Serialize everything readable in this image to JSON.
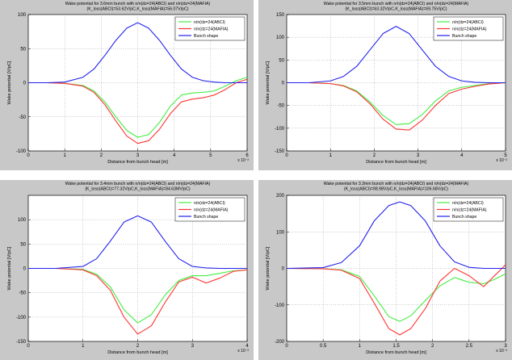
{
  "chart_data": [
    {
      "type": "line",
      "title": "Wake potential for 3.6mm bunch with n/n(dz=24(ABCI) and n/n(dz=24(MAFIA)",
      "subtitle": "(K_loss(ABCI)=53.62V/pC,K_loss(MAFIA)=56.07V/pC)",
      "xlabel": "Distance from bunch head [m]",
      "ylabel": "Wake potential [V/pC]",
      "xlim": [
        0,
        6
      ],
      "ylim": [
        -100,
        100
      ],
      "xtick_labels": [
        "0",
        "1",
        "2",
        "3",
        "4",
        "5",
        "6"
      ],
      "ytick_labels": [
        "100",
        "50",
        "0",
        "-50",
        "-100"
      ],
      "exponent_label": "x 10⁻²",
      "legend_position": "top-right",
      "grid": true,
      "x": [
        0,
        0.5,
        1.0,
        1.5,
        1.8,
        2.1,
        2.4,
        2.7,
        3.0,
        3.3,
        3.6,
        3.9,
        4.2,
        4.5,
        4.8,
        5.1,
        5.4,
        5.7,
        6.0
      ],
      "series": [
        {
          "name": "n/n(dz=24(ABCI)",
          "color": "#44ee44",
          "values": [
            0,
            0,
            -1,
            -4,
            -12,
            -28,
            -50,
            -70,
            -80,
            -76,
            -58,
            -34,
            -18,
            -15,
            -14,
            -12,
            -5,
            3,
            8
          ]
        },
        {
          "name": "n/n(dz=24(MAFIA)",
          "color": "#ff3333",
          "values": [
            0,
            0,
            -1,
            -5,
            -14,
            -32,
            -56,
            -78,
            -89,
            -85,
            -68,
            -45,
            -28,
            -24,
            -22,
            -18,
            -10,
            0,
            5
          ]
        },
        {
          "name": "Bunch shape",
          "color": "#2222ee",
          "values": [
            0,
            0,
            1,
            8,
            20,
            40,
            62,
            80,
            88,
            80,
            62,
            40,
            20,
            8,
            3,
            1,
            0,
            0,
            0
          ]
        }
      ]
    },
    {
      "type": "line",
      "title": "Wake potential for 3.5mm bunch with n/n(dz=24(ABCI) and n/n(dz=24(MAFIA)",
      "subtitle": "(K_loss(ABCI)=63.32V/pC,K_loss(MAFIA)=69.75V/pC)",
      "xlabel": "Distance from bunch head [m]",
      "ylabel": "Wake potential [V/pC]",
      "xlim": [
        0,
        5
      ],
      "ylim": [
        -150,
        150
      ],
      "xtick_labels": [
        "0",
        "1",
        "2",
        "3",
        "4",
        "5"
      ],
      "ytick_labels": [
        "150",
        "100",
        "50",
        "0",
        "-50",
        "-100",
        "-150"
      ],
      "exponent_label": "x 10⁻²",
      "legend_position": "top-right",
      "grid": true,
      "x": [
        0,
        0.5,
        1.0,
        1.3,
        1.6,
        1.9,
        2.2,
        2.5,
        2.8,
        3.1,
        3.4,
        3.7,
        4.0,
        4.3,
        4.6,
        5.0
      ],
      "series": [
        {
          "name": "n/n(dz=24(ABCI)",
          "color": "#44ee44",
          "values": [
            0,
            0,
            -2,
            -6,
            -18,
            -42,
            -72,
            -92,
            -90,
            -70,
            -40,
            -18,
            -10,
            -6,
            -2,
            0
          ]
        },
        {
          "name": "n/n(dz=24(MAFIA)",
          "color": "#ff3333",
          "values": [
            0,
            0,
            -2,
            -7,
            -20,
            -46,
            -80,
            -102,
            -104,
            -82,
            -50,
            -24,
            -14,
            -8,
            -3,
            0
          ]
        },
        {
          "name": "Bunch shape",
          "color": "#2222ee",
          "values": [
            0,
            0,
            4,
            14,
            36,
            72,
            108,
            124,
            108,
            72,
            36,
            14,
            4,
            1,
            0,
            0
          ]
        }
      ]
    },
    {
      "type": "line",
      "title": "Wake potential for 3.4mm bunch with n/n(dz=24(ABCI) and n/n(dz=24(MAFIA)",
      "subtitle": "(K_loss(ABCI)=77.32V/pC,K_loss(MAFIA)=84.63MV/pC)",
      "xlabel": "Distance from bunch head [m]",
      "ylabel": "Wake potential [V/pC]",
      "xlim": [
        0,
        4
      ],
      "ylim": [
        -150,
        150
      ],
      "xtick_labels": [
        "0",
        "1",
        "2",
        "3",
        "4"
      ],
      "ytick_labels": [
        "100",
        "50",
        "0",
        "-50",
        "-100",
        "-150"
      ],
      "exponent_label": "x 10⁻²",
      "legend_position": "top-right",
      "grid": true,
      "x": [
        0,
        0.5,
        1.0,
        1.25,
        1.5,
        1.75,
        2.0,
        2.25,
        2.5,
        2.75,
        3.0,
        3.25,
        3.5,
        3.75,
        4.0
      ],
      "series": [
        {
          "name": "n/n(dz=24(ABCI)",
          "color": "#44ee44",
          "values": [
            0,
            0,
            -2,
            -12,
            -38,
            -85,
            -112,
            -95,
            -55,
            -25,
            -15,
            -15,
            -10,
            -5,
            -3
          ]
        },
        {
          "name": "n/n(dz=24(MAFIA)",
          "color": "#ff3333",
          "values": [
            0,
            0,
            -3,
            -15,
            -45,
            -100,
            -135,
            -118,
            -70,
            -28,
            -18,
            -30,
            -20,
            -6,
            -3
          ]
        },
        {
          "name": "Bunch shape",
          "color": "#2222ee",
          "values": [
            0,
            0,
            4,
            20,
            56,
            95,
            108,
            95,
            56,
            20,
            4,
            1,
            0,
            0,
            0
          ]
        }
      ]
    },
    {
      "type": "line",
      "title": "Wake potential for 3.3mm bunch with n/n(dz=24(ABCI) and n/n(dz=24(MAFIA)",
      "subtitle": "(K_loss(ABCI)=98.98V/pC,K_loss(MAFIA)=106.68V/pC)",
      "xlabel": "Distance from bunch head [m]",
      "ylabel": "Wake potential [V/pC]",
      "xlim": [
        0,
        3
      ],
      "ylim": [
        -200,
        200
      ],
      "xtick_labels": [
        "0",
        "0.5",
        "1",
        "1.5",
        "2",
        "2.5",
        "3"
      ],
      "ytick_labels": [
        "200",
        "100",
        "0",
        "-100",
        "-200"
      ],
      "exponent_label": "x 10⁻²",
      "legend_position": "top-right",
      "grid": true,
      "x": [
        0,
        0.5,
        0.75,
        1.0,
        1.2,
        1.4,
        1.55,
        1.7,
        1.9,
        2.1,
        2.3,
        2.5,
        2.7,
        2.85,
        3.0
      ],
      "series": [
        {
          "name": "n/n(dz=24(ABCI)",
          "color": "#44ee44",
          "values": [
            0,
            -1,
            -4,
            -22,
            -75,
            -132,
            -145,
            -130,
            -88,
            -48,
            -25,
            -38,
            -42,
            -30,
            -15
          ]
        },
        {
          "name": "n/n(dz=24(MAFIA)",
          "color": "#ff3333",
          "values": [
            0,
            -1,
            -5,
            -28,
            -95,
            -165,
            -182,
            -165,
            -110,
            -35,
            0,
            -20,
            -50,
            -20,
            10
          ]
        },
        {
          "name": "Bunch shape",
          "color": "#2222ee",
          "values": [
            0,
            2,
            16,
            62,
            130,
            172,
            182,
            172,
            130,
            62,
            18,
            3,
            0,
            0,
            0
          ]
        }
      ]
    }
  ]
}
